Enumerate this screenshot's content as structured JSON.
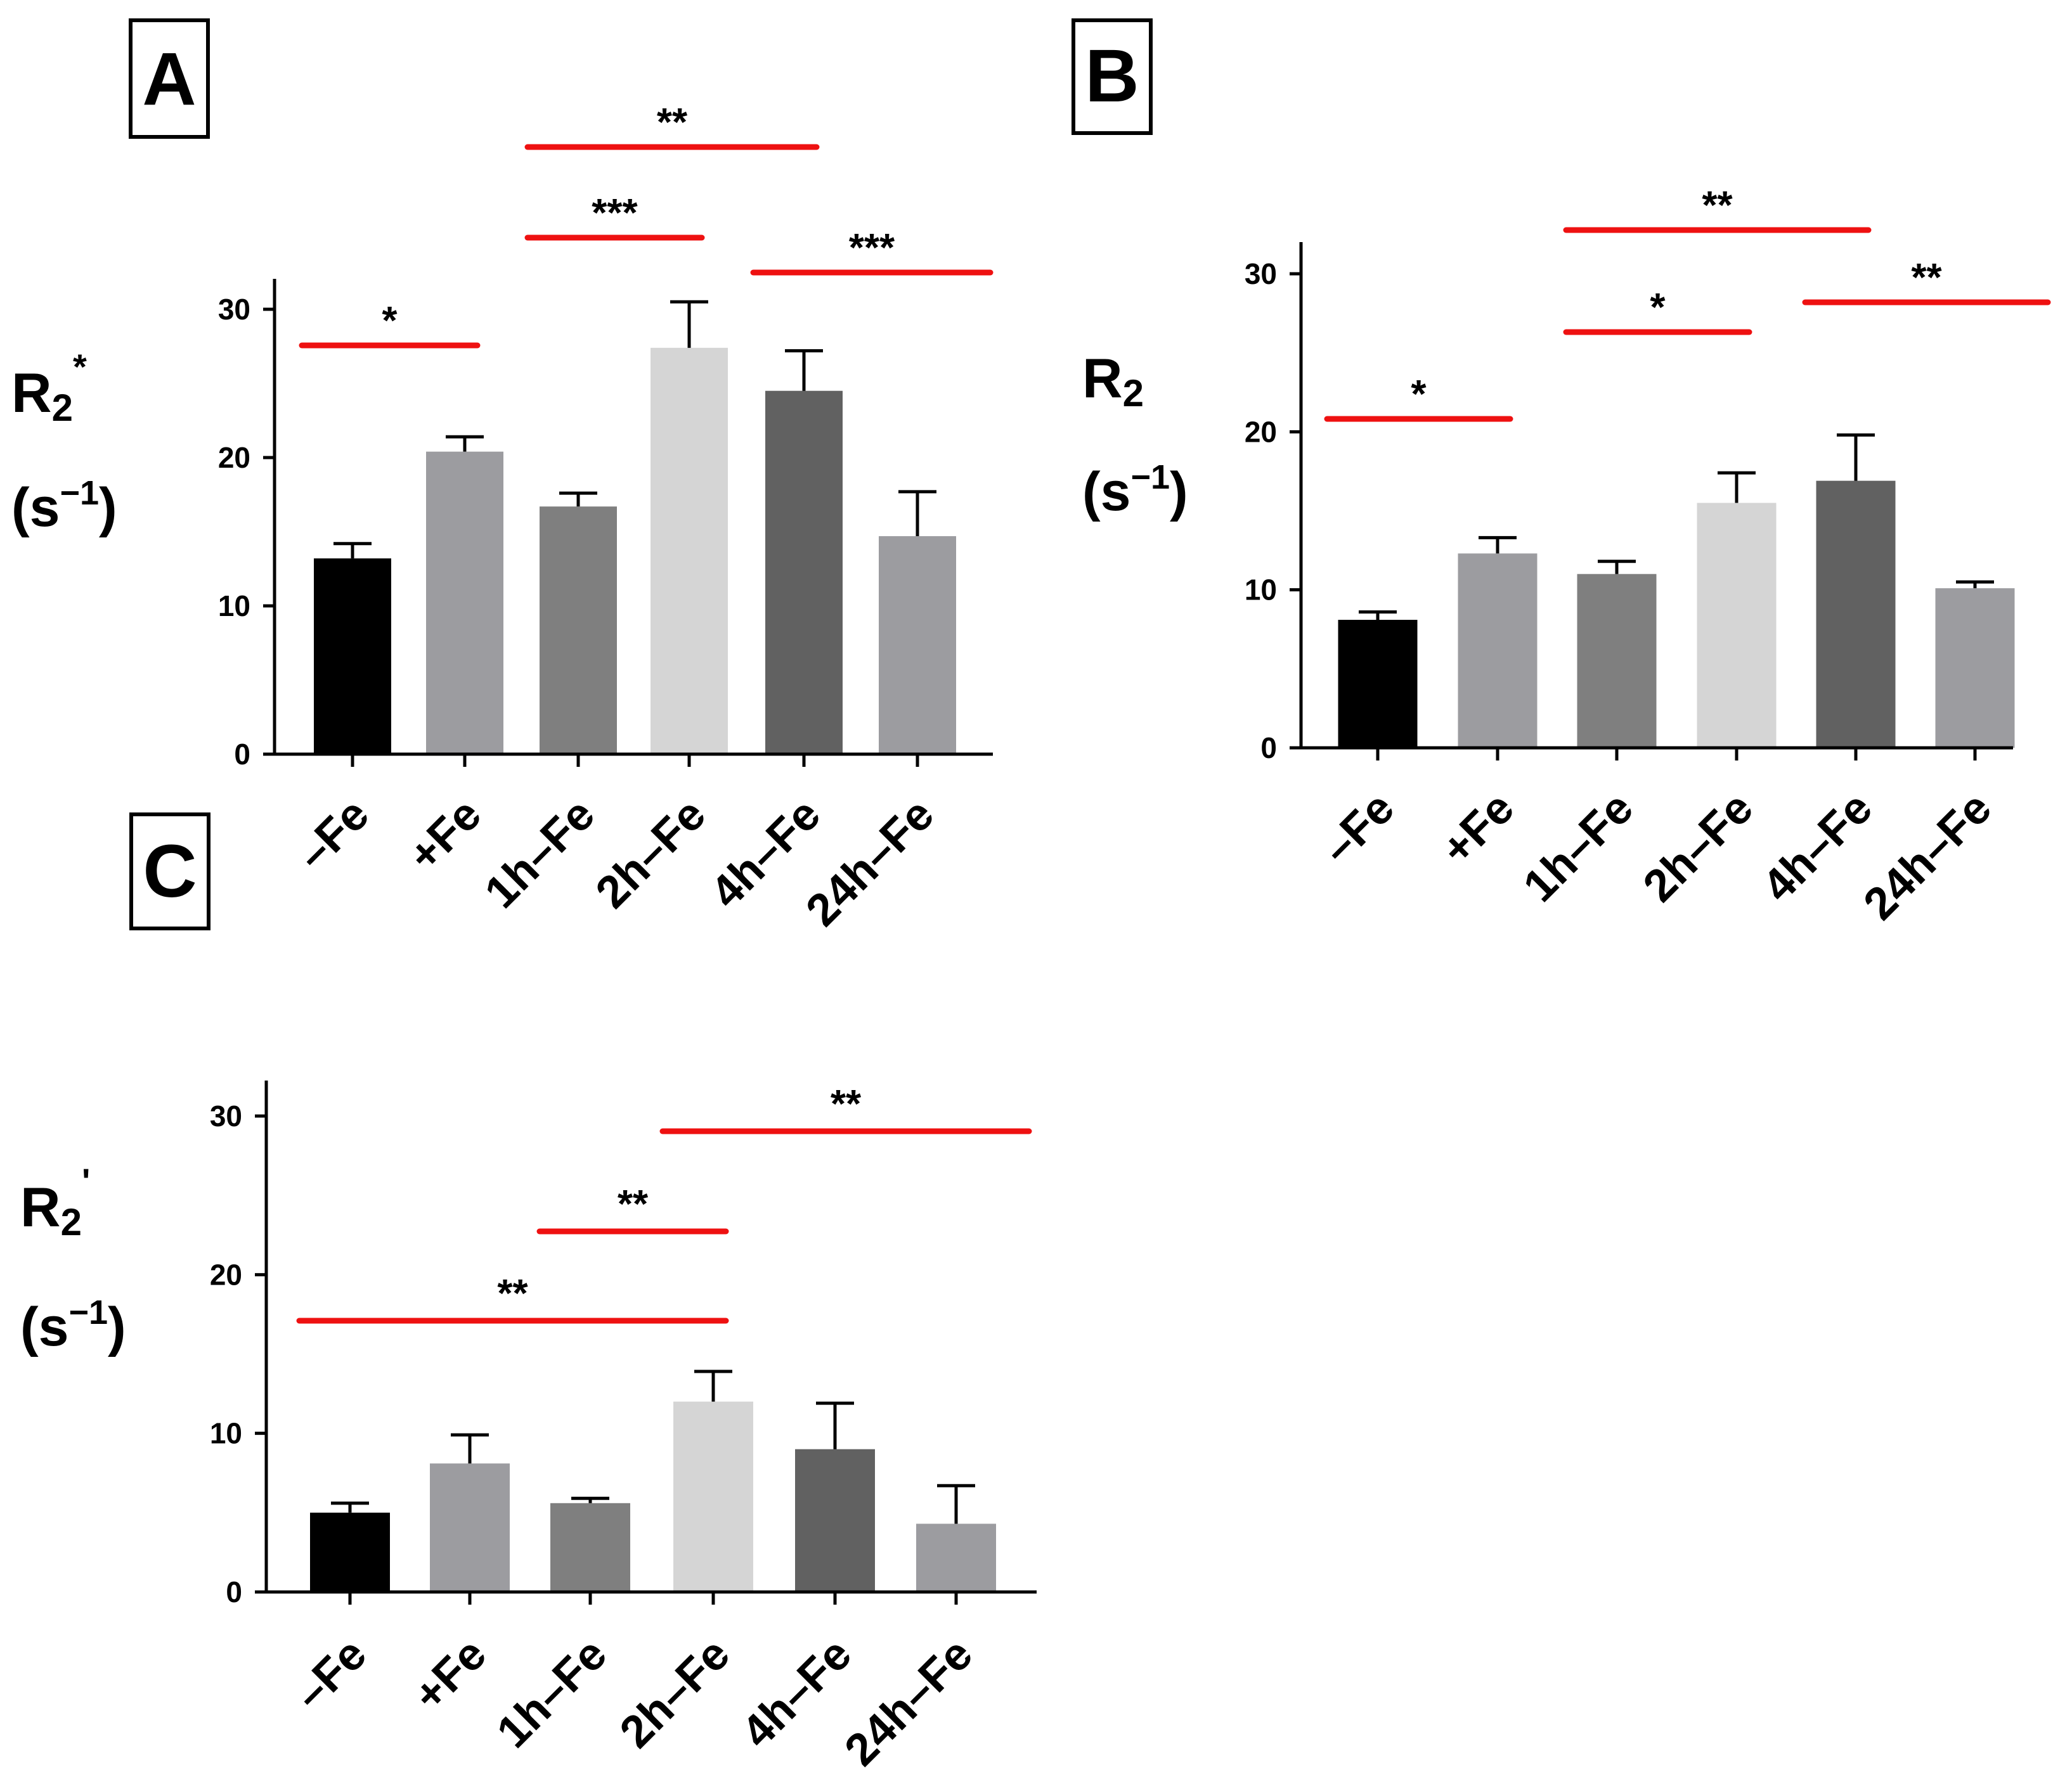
{
  "figure": {
    "colors": {
      "axis": "#000000",
      "significance": "#ee1111",
      "error_bar": "#000000"
    }
  },
  "chart_data": [
    {
      "panel": "A",
      "type": "bar",
      "ylabel_main": "R",
      "ylabel_sub": "2",
      "ylabel_sup": "*",
      "ylabel_unit_open": "(s",
      "ylabel_unit_sup": "−1",
      "ylabel_unit_close": ")",
      "categories": [
        "–Fe",
        "+Fe",
        "1h–Fe",
        "2h–Fe",
        "4h–Fe",
        "24h–Fe"
      ],
      "values": [
        13.2,
        20.4,
        16.7,
        27.4,
        24.5,
        14.7
      ],
      "errors": [
        1.0,
        1.0,
        0.9,
        3.1,
        2.7,
        3.0
      ],
      "bar_colors": [
        "#000000",
        "#9c9ca0",
        "#7f7f7f",
        "#d5d5d5",
        "#616161",
        "#9c9ca0"
      ],
      "ylim": [
        0,
        30
      ],
      "yticks": [
        "0",
        "10",
        "20",
        "30"
      ],
      "significance": [
        {
          "from": 0,
          "to": 1,
          "label": "*"
        },
        {
          "from": 2,
          "to": 3,
          "label": "***"
        },
        {
          "from": 2,
          "to": 4,
          "label": "**"
        },
        {
          "from": 4,
          "to": 5,
          "label": "***"
        }
      ]
    },
    {
      "panel": "B",
      "type": "bar",
      "ylabel_main": "R",
      "ylabel_sub": "2",
      "ylabel_sup": "",
      "ylabel_unit_open": "(s",
      "ylabel_unit_sup": "−1",
      "ylabel_unit_close": ")",
      "categories": [
        "–Fe",
        "+Fe",
        "1h–Fe",
        "2h–Fe",
        "4h–Fe",
        "24h–Fe"
      ],
      "values": [
        8.1,
        12.3,
        11.0,
        15.5,
        16.9,
        10.1
      ],
      "errors": [
        0.5,
        1.0,
        0.8,
        1.9,
        2.9,
        0.4
      ],
      "bar_colors": [
        "#000000",
        "#9c9ca0",
        "#7f7f7f",
        "#d5d5d5",
        "#616161",
        "#9c9ca0"
      ],
      "ylim": [
        0,
        30
      ],
      "yticks": [
        "0",
        "10",
        "20",
        "30"
      ],
      "significance": [
        {
          "from": 0,
          "to": 1,
          "label": "*"
        },
        {
          "from": 2,
          "to": 3,
          "label": "*"
        },
        {
          "from": 2,
          "to": 4,
          "label": "**"
        },
        {
          "from": 4,
          "to": 5,
          "label": "**"
        }
      ]
    },
    {
      "panel": "C",
      "type": "bar",
      "ylabel_main": "R",
      "ylabel_sub": "2",
      "ylabel_sup": "'",
      "ylabel_unit_open": "(s",
      "ylabel_unit_sup": "−1",
      "ylabel_unit_close": ")",
      "categories": [
        "–Fe",
        "+Fe",
        "1h–Fe",
        "2h–Fe",
        "4h–Fe",
        "24h–Fe"
      ],
      "values": [
        5.0,
        8.1,
        5.6,
        12.0,
        9.0,
        4.3
      ],
      "errors": [
        0.6,
        1.8,
        0.3,
        1.9,
        2.9,
        2.4
      ],
      "bar_colors": [
        "#000000",
        "#9c9ca0",
        "#7f7f7f",
        "#d5d5d5",
        "#616161",
        "#9c9ca0"
      ],
      "ylim": [
        0,
        30
      ],
      "yticks": [
        "0",
        "10",
        "20",
        "30"
      ],
      "significance": [
        {
          "from": 0,
          "to": 3,
          "label": "**"
        },
        {
          "from": 2,
          "to": 3,
          "label": "**"
        },
        {
          "from": 3,
          "to": 5,
          "label": "**"
        }
      ]
    }
  ]
}
